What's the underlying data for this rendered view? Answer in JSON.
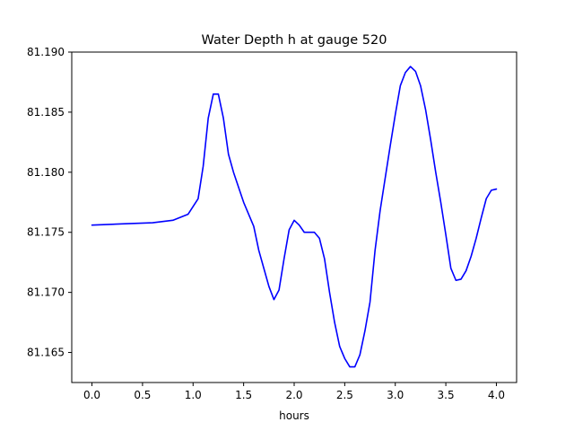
{
  "chart_data": {
    "type": "line",
    "title": "Water Depth h at gauge 520",
    "xlabel": "hours",
    "ylabel": "",
    "xlim": [
      -0.2,
      4.2
    ],
    "ylim": [
      81.1625,
      81.19
    ],
    "x_ticks": [
      0.0,
      0.5,
      1.0,
      1.5,
      2.0,
      2.5,
      3.0,
      3.5,
      4.0
    ],
    "x_tick_labels": [
      "0.0",
      "0.5",
      "1.0",
      "1.5",
      "2.0",
      "2.5",
      "3.0",
      "3.5",
      "4.0"
    ],
    "y_ticks": [
      81.165,
      81.17,
      81.175,
      81.18,
      81.185,
      81.19
    ],
    "y_tick_labels": [
      "81.165",
      "81.170",
      "81.175",
      "81.180",
      "81.185",
      "81.190"
    ],
    "grid": false,
    "series": [
      {
        "color": "#0000ff",
        "x": [
          0.0,
          0.3,
          0.6,
          0.8,
          0.95,
          1.05,
          1.1,
          1.15,
          1.2,
          1.25,
          1.3,
          1.35,
          1.4,
          1.5,
          1.6,
          1.65,
          1.7,
          1.75,
          1.8,
          1.85,
          1.9,
          1.95,
          2.0,
          2.05,
          2.1,
          2.15,
          2.2,
          2.25,
          2.3,
          2.35,
          2.4,
          2.45,
          2.5,
          2.55,
          2.6,
          2.65,
          2.7,
          2.75,
          2.8,
          2.85,
          2.9,
          2.95,
          3.0,
          3.05,
          3.1,
          3.15,
          3.2,
          3.25,
          3.3,
          3.35,
          3.4,
          3.45,
          3.5,
          3.55,
          3.6,
          3.65,
          3.7,
          3.75,
          3.8,
          3.85,
          3.9,
          3.95,
          4.0
        ],
        "y": [
          81.1756,
          81.1757,
          81.1758,
          81.176,
          81.1765,
          81.1778,
          81.1805,
          81.1845,
          81.1865,
          81.1865,
          81.1845,
          81.1815,
          81.18,
          81.1775,
          81.1755,
          81.1735,
          81.172,
          81.1705,
          81.1694,
          81.1702,
          81.1728,
          81.1752,
          81.176,
          81.1756,
          81.175,
          81.175,
          81.175,
          81.1745,
          81.1728,
          81.17,
          81.1675,
          81.1655,
          81.1645,
          81.1638,
          81.1638,
          81.1648,
          81.1668,
          81.1692,
          81.1735,
          81.1768,
          81.1795,
          81.1822,
          81.1848,
          81.1872,
          81.1883,
          81.1888,
          81.1884,
          81.1872,
          81.1852,
          81.1827,
          81.18,
          81.1775,
          81.1748,
          81.172,
          81.171,
          81.1711,
          81.1718,
          81.173,
          81.1745,
          81.1762,
          81.1778,
          81.1785,
          81.1786
        ]
      }
    ]
  }
}
